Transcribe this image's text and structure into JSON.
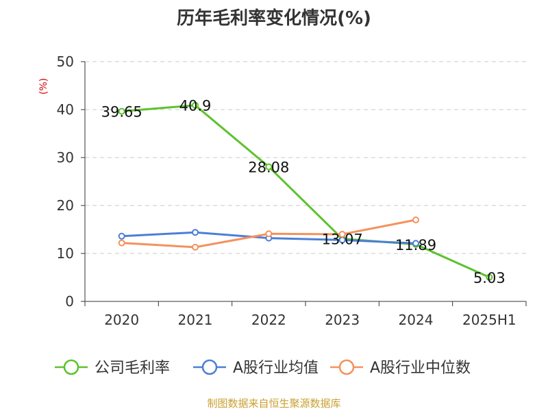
{
  "chart_data": {
    "type": "line",
    "title": "历年毛利率变化情况(%)",
    "ylabel": "(%)",
    "xlabel": "",
    "categories": [
      "2020",
      "2021",
      "2022",
      "2023",
      "2024",
      "2025H1"
    ],
    "ylim": [
      0,
      50
    ],
    "yticks": [
      0,
      10,
      20,
      30,
      40,
      50
    ],
    "grid": "horizontal-dashed",
    "legend_position": "bottom",
    "series": [
      {
        "name": "公司毛利率",
        "color": "#5cc22c",
        "values": [
          39.65,
          40.9,
          28.08,
          13.07,
          11.89,
          5.03
        ],
        "labels": [
          "39.65",
          "40.9",
          "28.08",
          "13.07",
          "11.89",
          "5.03"
        ]
      },
      {
        "name": "A股行业均值",
        "color": "#4b7fd6",
        "values": [
          13.6,
          14.4,
          13.2,
          12.8,
          12.1,
          null
        ]
      },
      {
        "name": "A股行业中位数",
        "color": "#f4915c",
        "values": [
          12.2,
          11.3,
          14.1,
          14.0,
          17.0,
          null
        ]
      }
    ]
  },
  "source": "制图数据来自恒生聚源数据库"
}
